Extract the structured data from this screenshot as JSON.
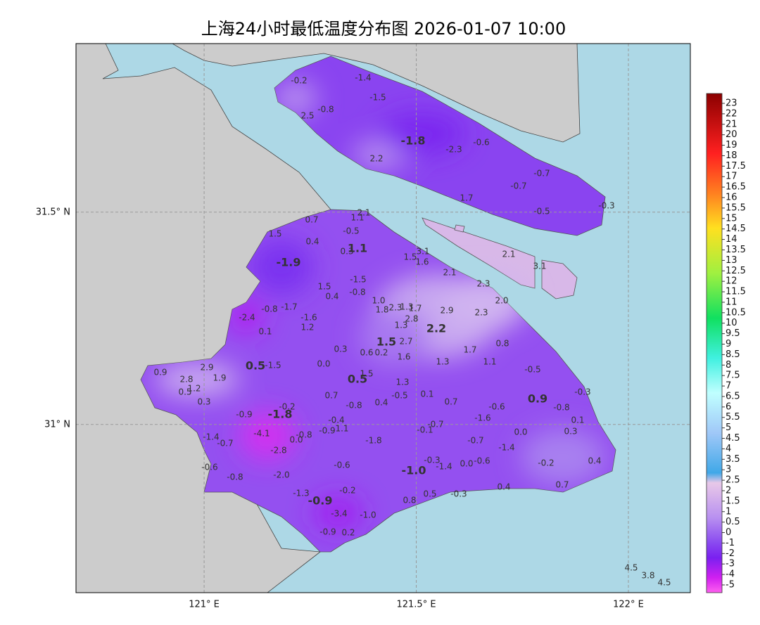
{
  "title": "上海24小时最低温度分布图 2026-01-07 10:00",
  "map": {
    "xlim": [
      120.698,
      122.146
    ],
    "ylim": [
      30.604,
      31.897
    ],
    "xticks": [
      {
        "value": 121,
        "label": "121° E"
      },
      {
        "value": 121.5,
        "label": "121.5° E"
      },
      {
        "value": 122,
        "label": "122° E"
      }
    ],
    "yticks": [
      {
        "value": 31.5,
        "label": "31.5° N"
      },
      {
        "value": 31,
        "label": "31° N"
      }
    ],
    "grid": true
  },
  "colorbar": {
    "ticks": [
      23,
      22,
      21,
      20,
      19,
      18,
      17.5,
      17,
      16.5,
      16,
      15.5,
      15,
      14.5,
      14,
      13.5,
      13,
      12.5,
      12,
      11.5,
      11,
      10.5,
      10,
      9.5,
      9,
      8.5,
      8,
      7.5,
      7,
      6.5,
      6,
      5.5,
      5,
      4.5,
      4,
      3.5,
      3,
      2.5,
      2,
      1.5,
      1,
      0.5,
      0,
      -1,
      -2,
      -3,
      -4,
      -5
    ]
  },
  "stations": [
    "-0.2",
    "-1.4",
    "-1.5",
    "-0.8",
    "2.5",
    "-1.8",
    "-2.3",
    "-0.6",
    "2.2",
    "-0.7",
    "-0.7",
    "1.7",
    "-0.5",
    "-0.3",
    "2.1",
    "3.1",
    "2.1",
    "1.1",
    "0.7",
    "-0.5",
    "1.5",
    "0.4",
    "1.1",
    "0.3",
    "3.1",
    "1.5",
    "1.6",
    "-1.9",
    "2.1",
    "-1.5",
    "1.5",
    "2.3",
    "0.4",
    "-0.8",
    "1.0",
    "2.0",
    "1.8",
    "2.3",
    "1.3",
    "1.7",
    "-0.8",
    "-1.7",
    "2.9",
    "2.3",
    "-2.4",
    "-1.6",
    "2.8",
    "1.3",
    "2.2",
    "1.2",
    "0.1",
    "1.5",
    "2.7",
    "0.8",
    "0.3",
    "1.7",
    "0.6",
    "0.2",
    "1.6",
    "1.1",
    "0.0",
    "1.3",
    "0.9",
    "2.9",
    "0.5",
    "-1.5",
    "-0.5",
    "1.9",
    "2.8",
    "1.5",
    "0.5",
    "1.3",
    "0.5",
    "1.2",
    "-0.5",
    "0.1",
    "0.7",
    "-0.3",
    "0.9",
    "0.3",
    "0.4",
    "0.7",
    "-0.8",
    "-0.2",
    "-0.6",
    "-0.8",
    "-0.9",
    "-1.8",
    "-1.6",
    "0.1",
    "-0.4",
    "-0.7",
    "-0.1",
    "-0.9",
    "1.1",
    "-4.1",
    "-0.8",
    "0.0",
    "-1.4",
    "-0.7",
    "-1.8",
    "0.0",
    "0.3",
    "-0.7",
    "-1.4",
    "-2.8",
    "-0.3",
    "-1.4",
    "0.0",
    "-0.6",
    "-0.2",
    "0.4",
    "-1.0",
    "-0.6",
    "-0.6",
    "-0.8",
    "-2.0",
    "-1.3",
    "-0.2",
    "0.4",
    "0.7",
    "0.5",
    "-0.3",
    "-0.9",
    "0.8",
    "-3.4",
    "-1.0",
    "-0.9",
    "0.2",
    "4.5",
    "3.8",
    "4.5"
  ]
}
